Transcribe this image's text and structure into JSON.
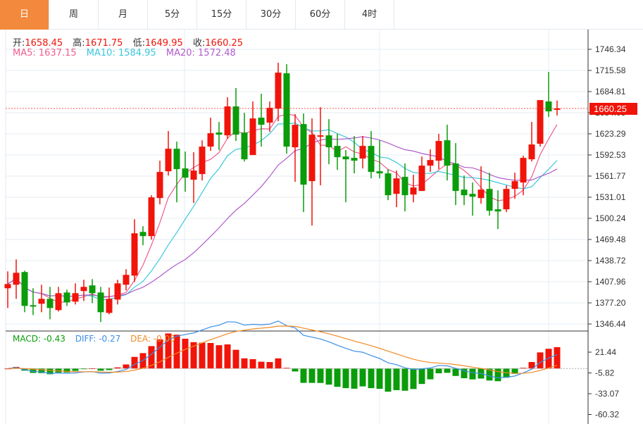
{
  "tabs": [
    "日",
    "周",
    "月",
    "5分",
    "15分",
    "30分",
    "60分",
    "4时"
  ],
  "active_tab": 0,
  "ohlc": {
    "open_label": "开:",
    "open": "1658.45",
    "high_label": "高:",
    "high": "1671.75",
    "low_label": "低:",
    "low": "1649.95",
    "close_label": "收:",
    "close": "1660.25"
  },
  "ma": {
    "ma5": "MA5: 1637.15",
    "ma10": "MA10: 1584.95",
    "ma20": "MA20: 1572.48"
  },
  "macd": {
    "macd": "MACD: -0.43",
    "diff": "DIFF: -0.27",
    "dea": "DEA: -0.05"
  },
  "current_price": "1660.25",
  "colors": {
    "up": "#f0140a",
    "down": "#0a9c0a",
    "ma5": "#ee5d8e",
    "ma10": "#3cc7dc",
    "ma20": "#b05ccc",
    "diff": "#3a8ee6",
    "dea": "#f08a24",
    "tab_active": "#f2893c"
  },
  "chart_data": {
    "type": "candlestick",
    "price_axis": [
      "1746.34",
      "1715.58",
      "1684.81",
      "1654.05",
      "1623.29",
      "1592.53",
      "1561.77",
      "1531.01",
      "1500.24",
      "1469.48",
      "1438.72",
      "1407.96",
      "1377.20",
      "1346.44"
    ],
    "macd_axis": [
      "21.44",
      "-5.82",
      "-33.07",
      "-60.32"
    ],
    "ylim": [
      1346.44,
      1746.34
    ],
    "candles": [
      [
        1398.5,
        1423.1,
        1369.7,
        1404.6
      ],
      [
        1403.6,
        1440.5,
        1383.1,
        1421.0
      ],
      [
        1422.1,
        1424.1,
        1363.6,
        1372.8
      ],
      [
        1373.8,
        1398.5,
        1359.5,
        1372.8
      ],
      [
        1375.9,
        1403.6,
        1363.6,
        1383.1
      ],
      [
        1383.1,
        1400.5,
        1353.3,
        1369.7
      ],
      [
        1366.7,
        1400.5,
        1364.6,
        1391.3
      ],
      [
        1392.3,
        1396.4,
        1372.8,
        1377.9
      ],
      [
        1379.0,
        1405.6,
        1374.9,
        1391.3
      ],
      [
        1394.4,
        1410.8,
        1380.0,
        1400.5
      ],
      [
        1402.6,
        1411.8,
        1376.9,
        1391.3
      ],
      [
        1392.3,
        1400.5,
        1349.2,
        1363.6
      ],
      [
        1362.6,
        1399.5,
        1360.5,
        1383.1
      ],
      [
        1382.0,
        1410.8,
        1374.9,
        1405.6
      ],
      [
        1403.6,
        1426.2,
        1395.4,
        1418.0
      ],
      [
        1416.9,
        1499.0,
        1407.7,
        1478.5
      ],
      [
        1480.5,
        1488.8,
        1461.1,
        1474.4
      ],
      [
        1474.4,
        1533.9,
        1469.3,
        1530.8
      ],
      [
        1529.8,
        1584.2,
        1520.6,
        1567.8
      ],
      [
        1568.8,
        1627.3,
        1562.6,
        1601.6
      ],
      [
        1601.6,
        1611.9,
        1523.6,
        1571.9
      ],
      [
        1572.9,
        1597.5,
        1539.0,
        1559.5
      ],
      [
        1556.5,
        1596.5,
        1522.6,
        1569.8
      ],
      [
        1564.7,
        1613.9,
        1555.4,
        1604.7
      ],
      [
        1604.7,
        1646.8,
        1598.5,
        1624.2
      ],
      [
        1625.2,
        1640.6,
        1599.6,
        1622.1
      ],
      [
        1621.1,
        1676.5,
        1616.0,
        1663.2
      ],
      [
        1663.2,
        1689.9,
        1612.9,
        1622.1
      ],
      [
        1625.2,
        1653.9,
        1583.1,
        1586.2
      ],
      [
        1592.4,
        1670.4,
        1592.4,
        1645.7
      ],
      [
        1646.8,
        1681.6,
        1604.7,
        1636.5
      ],
      [
        1639.6,
        1670.4,
        1626.2,
        1661.1
      ],
      [
        1660.1,
        1726.8,
        1641.6,
        1712.4
      ],
      [
        1711.4,
        1724.7,
        1594.4,
        1604.7
      ],
      [
        1603.7,
        1651.9,
        1553.4,
        1636.5
      ],
      [
        1637.5,
        1652.9,
        1509.3,
        1549.3
      ],
      [
        1554.4,
        1645.7,
        1489.8,
        1622.1
      ],
      [
        1619.1,
        1662.1,
        1548.3,
        1621.1
      ],
      [
        1621.1,
        1644.7,
        1579.0,
        1603.7
      ],
      [
        1605.7,
        1623.2,
        1570.8,
        1589.3
      ],
      [
        1590.3,
        1599.6,
        1523.6,
        1586.2
      ],
      [
        1588.3,
        1620.1,
        1565.7,
        1584.2
      ],
      [
        1587.3,
        1620.1,
        1572.9,
        1605.7
      ],
      [
        1605.7,
        1627.3,
        1558.5,
        1567.8
      ],
      [
        1568.8,
        1613.9,
        1558.5,
        1565.7
      ],
      [
        1565.7,
        1571.9,
        1526.7,
        1533.9
      ],
      [
        1535.9,
        1569.8,
        1516.5,
        1558.5
      ],
      [
        1560.6,
        1580.1,
        1510.3,
        1533.9
      ],
      [
        1534.9,
        1563.7,
        1523.6,
        1545.2
      ],
      [
        1540.1,
        1590.3,
        1540.1,
        1577.0
      ],
      [
        1577.0,
        1600.6,
        1567.8,
        1585.2
      ],
      [
        1584.2,
        1623.2,
        1571.9,
        1612.9
      ],
      [
        1613.9,
        1636.5,
        1555.4,
        1577.0
      ],
      [
        1580.1,
        1609.8,
        1519.5,
        1540.1
      ],
      [
        1542.1,
        1562.6,
        1519.5,
        1533.9
      ],
      [
        1535.9,
        1552.4,
        1504.1,
        1531.8
      ],
      [
        1529.8,
        1576.0,
        1521.6,
        1542.1
      ],
      [
        1543.1,
        1566.7,
        1504.1,
        1511.3
      ],
      [
        1513.4,
        1541.1,
        1484.7,
        1510.3
      ],
      [
        1513.4,
        1548.3,
        1509.3,
        1543.1
      ],
      [
        1543.1,
        1566.7,
        1528.8,
        1554.4
      ],
      [
        1552.4,
        1591.4,
        1533.9,
        1588.3
      ],
      [
        1586.2,
        1640.6,
        1583.1,
        1607.8
      ],
      [
        1608.8,
        1672.4,
        1604.7,
        1672.4
      ],
      [
        1670.4,
        1713.4,
        1647.8,
        1656.0
      ],
      [
        1658.45,
        1671.75,
        1649.95,
        1660.25
      ]
    ]
  }
}
